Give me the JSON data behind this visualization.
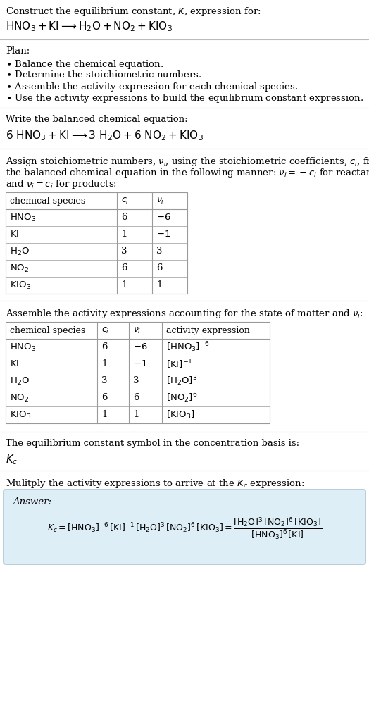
{
  "title_line1": "Construct the equilibrium constant, $K$, expression for:",
  "title_line2": "$\\mathrm{HNO_3 + KI \\longrightarrow H_2O + NO_2 + KIO_3}$",
  "plan_header": "Plan:",
  "plan_items": [
    "$\\bullet$ Balance the chemical equation.",
    "$\\bullet$ Determine the stoichiometric numbers.",
    "$\\bullet$ Assemble the activity expression for each chemical species.",
    "$\\bullet$ Use the activity expressions to build the equilibrium constant expression."
  ],
  "balanced_header": "Write the balanced chemical equation:",
  "balanced_eq": "$\\mathrm{6\\ HNO_3 + KI \\longrightarrow 3\\ H_2O + 6\\ NO_2 + KIO_3}$",
  "stoich_header_lines": [
    "Assign stoichiometric numbers, $\\nu_i$, using the stoichiometric coefficients, $c_i$, from",
    "the balanced chemical equation in the following manner: $\\nu_i = -c_i$ for reactants",
    "and $\\nu_i = c_i$ for products:"
  ],
  "table1_cols": [
    "chemical species",
    "$c_i$",
    "$\\nu_i$"
  ],
  "table1_rows": [
    [
      "$\\mathrm{HNO_3}$",
      "6",
      "$-6$"
    ],
    [
      "$\\mathrm{KI}$",
      "1",
      "$-1$"
    ],
    [
      "$\\mathrm{H_2O}$",
      "3",
      "3"
    ],
    [
      "$\\mathrm{NO_2}$",
      "6",
      "6"
    ],
    [
      "$\\mathrm{KIO_3}$",
      "1",
      "1"
    ]
  ],
  "activity_header": "Assemble the activity expressions accounting for the state of matter and $\\nu_i$:",
  "table2_cols": [
    "chemical species",
    "$c_i$",
    "$\\nu_i$",
    "activity expression"
  ],
  "table2_rows": [
    [
      "$\\mathrm{HNO_3}$",
      "6",
      "$-6$",
      "$[\\mathrm{HNO_3}]^{-6}$"
    ],
    [
      "$\\mathrm{KI}$",
      "1",
      "$-1$",
      "$[\\mathrm{KI}]^{-1}$"
    ],
    [
      "$\\mathrm{H_2O}$",
      "3",
      "3",
      "$[\\mathrm{H_2O}]^{3}$"
    ],
    [
      "$\\mathrm{NO_2}$",
      "6",
      "6",
      "$[\\mathrm{NO_2}]^{6}$"
    ],
    [
      "$\\mathrm{KIO_3}$",
      "1",
      "1",
      "$[\\mathrm{KIO_3}]$"
    ]
  ],
  "kc_header": "The equilibrium constant symbol in the concentration basis is:",
  "kc_symbol": "$K_c$",
  "multiply_header": "Mulitply the activity expressions to arrive at the $K_c$ expression:",
  "answer_label": "Answer:",
  "answer_eq": "$K_c = [\\mathrm{HNO_3}]^{-6}\\,[\\mathrm{KI}]^{-1}\\,[\\mathrm{H_2O}]^{3}\\,[\\mathrm{NO_2}]^{6}\\,[\\mathrm{KIO_3}] = \\dfrac{[\\mathrm{H_2O}]^{3}\\,[\\mathrm{NO_2}]^{6}\\,[\\mathrm{KIO_3}]}{[\\mathrm{HNO_3}]^{6}\\,[\\mathrm{KI}]}$",
  "bg_color": "#ffffff",
  "text_color": "#000000",
  "table_border_color": "#999999",
  "answer_box_bg": "#ddeef6",
  "answer_box_border": "#99bbcc",
  "separator_color": "#bbbbbb",
  "font_size": 9.5
}
